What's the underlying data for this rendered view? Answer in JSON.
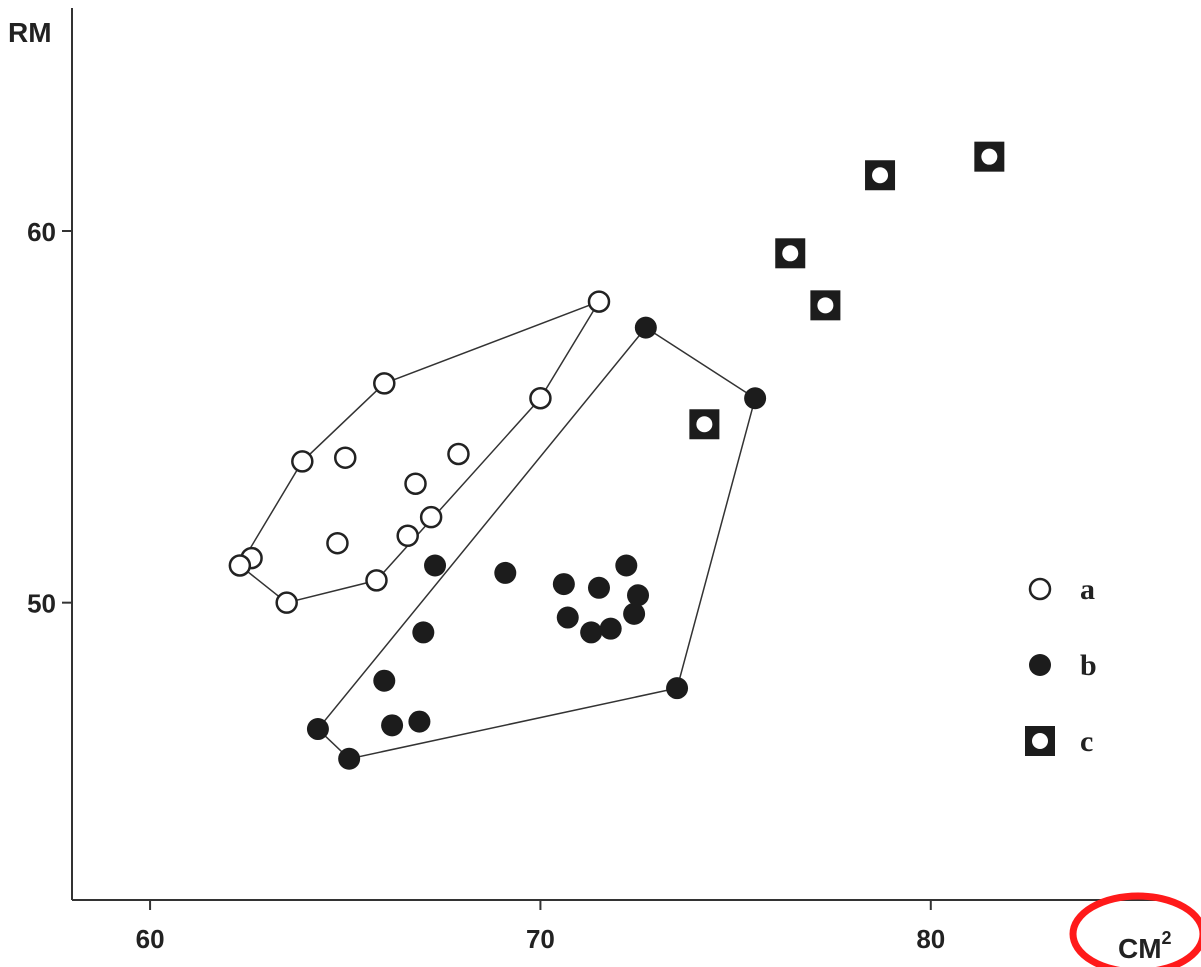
{
  "chart_data": {
    "type": "scatter",
    "title": "",
    "xlabel": "CM",
    "xlabel_superscript": "2",
    "ylabel": "RM",
    "xlim": [
      58,
      86
    ],
    "ylim": [
      42,
      66
    ],
    "x_ticks": [
      60,
      70,
      80
    ],
    "y_ticks": [
      50,
      60
    ],
    "grid": false,
    "legend_position": "right",
    "series": [
      {
        "name": "a",
        "marker": "open-circle",
        "points": [
          {
            "x": 71.5,
            "y": 58.1
          },
          {
            "x": 66.0,
            "y": 55.9
          },
          {
            "x": 70.0,
            "y": 55.5
          },
          {
            "x": 63.9,
            "y": 53.8
          },
          {
            "x": 65.0,
            "y": 53.9
          },
          {
            "x": 67.9,
            "y": 54.0
          },
          {
            "x": 66.8,
            "y": 53.2
          },
          {
            "x": 67.2,
            "y": 52.3
          },
          {
            "x": 66.6,
            "y": 51.8
          },
          {
            "x": 64.8,
            "y": 51.6
          },
          {
            "x": 62.6,
            "y": 51.2
          },
          {
            "x": 62.3,
            "y": 51.0
          },
          {
            "x": 65.8,
            "y": 50.6
          },
          {
            "x": 63.5,
            "y": 50.0
          }
        ],
        "hull": [
          [
            71.5,
            58.1
          ],
          [
            66.0,
            55.9
          ],
          [
            63.9,
            53.8
          ],
          [
            62.3,
            51.0
          ],
          [
            63.5,
            50.0
          ],
          [
            65.8,
            50.6
          ],
          [
            70.0,
            55.5
          ]
        ]
      },
      {
        "name": "b",
        "marker": "filled-circle",
        "points": [
          {
            "x": 72.7,
            "y": 57.4
          },
          {
            "x": 75.5,
            "y": 55.5
          },
          {
            "x": 67.3,
            "y": 51.0
          },
          {
            "x": 69.1,
            "y": 50.8
          },
          {
            "x": 70.6,
            "y": 50.5
          },
          {
            "x": 71.5,
            "y": 50.4
          },
          {
            "x": 72.2,
            "y": 51.0
          },
          {
            "x": 72.5,
            "y": 50.2
          },
          {
            "x": 70.7,
            "y": 49.6
          },
          {
            "x": 71.3,
            "y": 49.2
          },
          {
            "x": 71.8,
            "y": 49.3
          },
          {
            "x": 72.4,
            "y": 49.7
          },
          {
            "x": 67.0,
            "y": 49.2
          },
          {
            "x": 66.0,
            "y": 47.9
          },
          {
            "x": 73.5,
            "y": 47.7
          },
          {
            "x": 66.2,
            "y": 46.7
          },
          {
            "x": 66.9,
            "y": 46.8
          },
          {
            "x": 64.3,
            "y": 46.6
          },
          {
            "x": 65.1,
            "y": 45.8
          }
        ],
        "hull": [
          [
            72.7,
            57.4
          ],
          [
            75.5,
            55.5
          ],
          [
            73.5,
            47.7
          ],
          [
            65.1,
            45.8
          ],
          [
            64.3,
            46.6
          ]
        ]
      },
      {
        "name": "c",
        "marker": "square-with-circle",
        "points": [
          {
            "x": 81.5,
            "y": 62.0
          },
          {
            "x": 78.7,
            "y": 61.5
          },
          {
            "x": 76.4,
            "y": 59.4
          },
          {
            "x": 77.3,
            "y": 58.0
          },
          {
            "x": 74.2,
            "y": 54.8
          }
        ]
      }
    ]
  }
}
